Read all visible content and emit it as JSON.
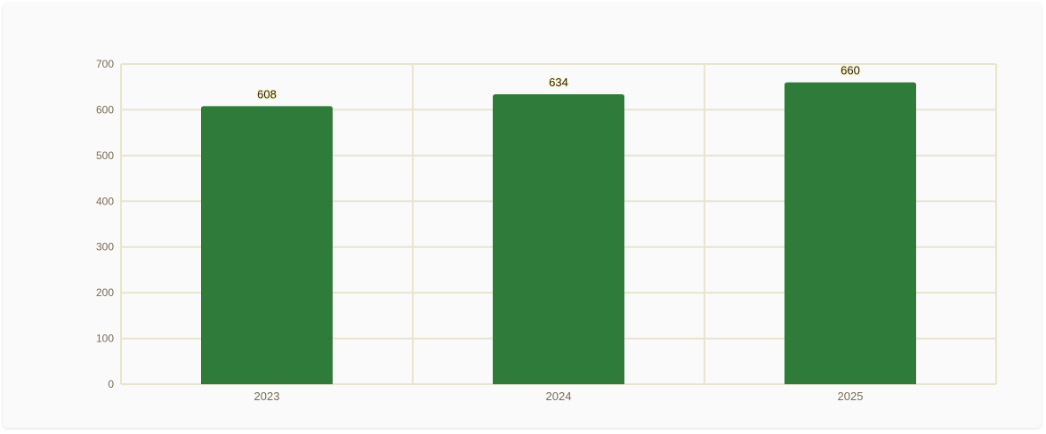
{
  "colors": {
    "bar": "#2e7b3a",
    "grid": "#e8e4cf",
    "tick_text": "#7a6a55"
  },
  "chart_data": {
    "type": "bar",
    "categories": [
      "2023",
      "2024",
      "2025"
    ],
    "values": [
      608,
      634,
      660
    ],
    "ylim": [
      0,
      700
    ],
    "yticks": [
      0,
      100,
      200,
      300,
      400,
      500,
      600,
      700
    ],
    "grid": true,
    "data_labels": true
  }
}
